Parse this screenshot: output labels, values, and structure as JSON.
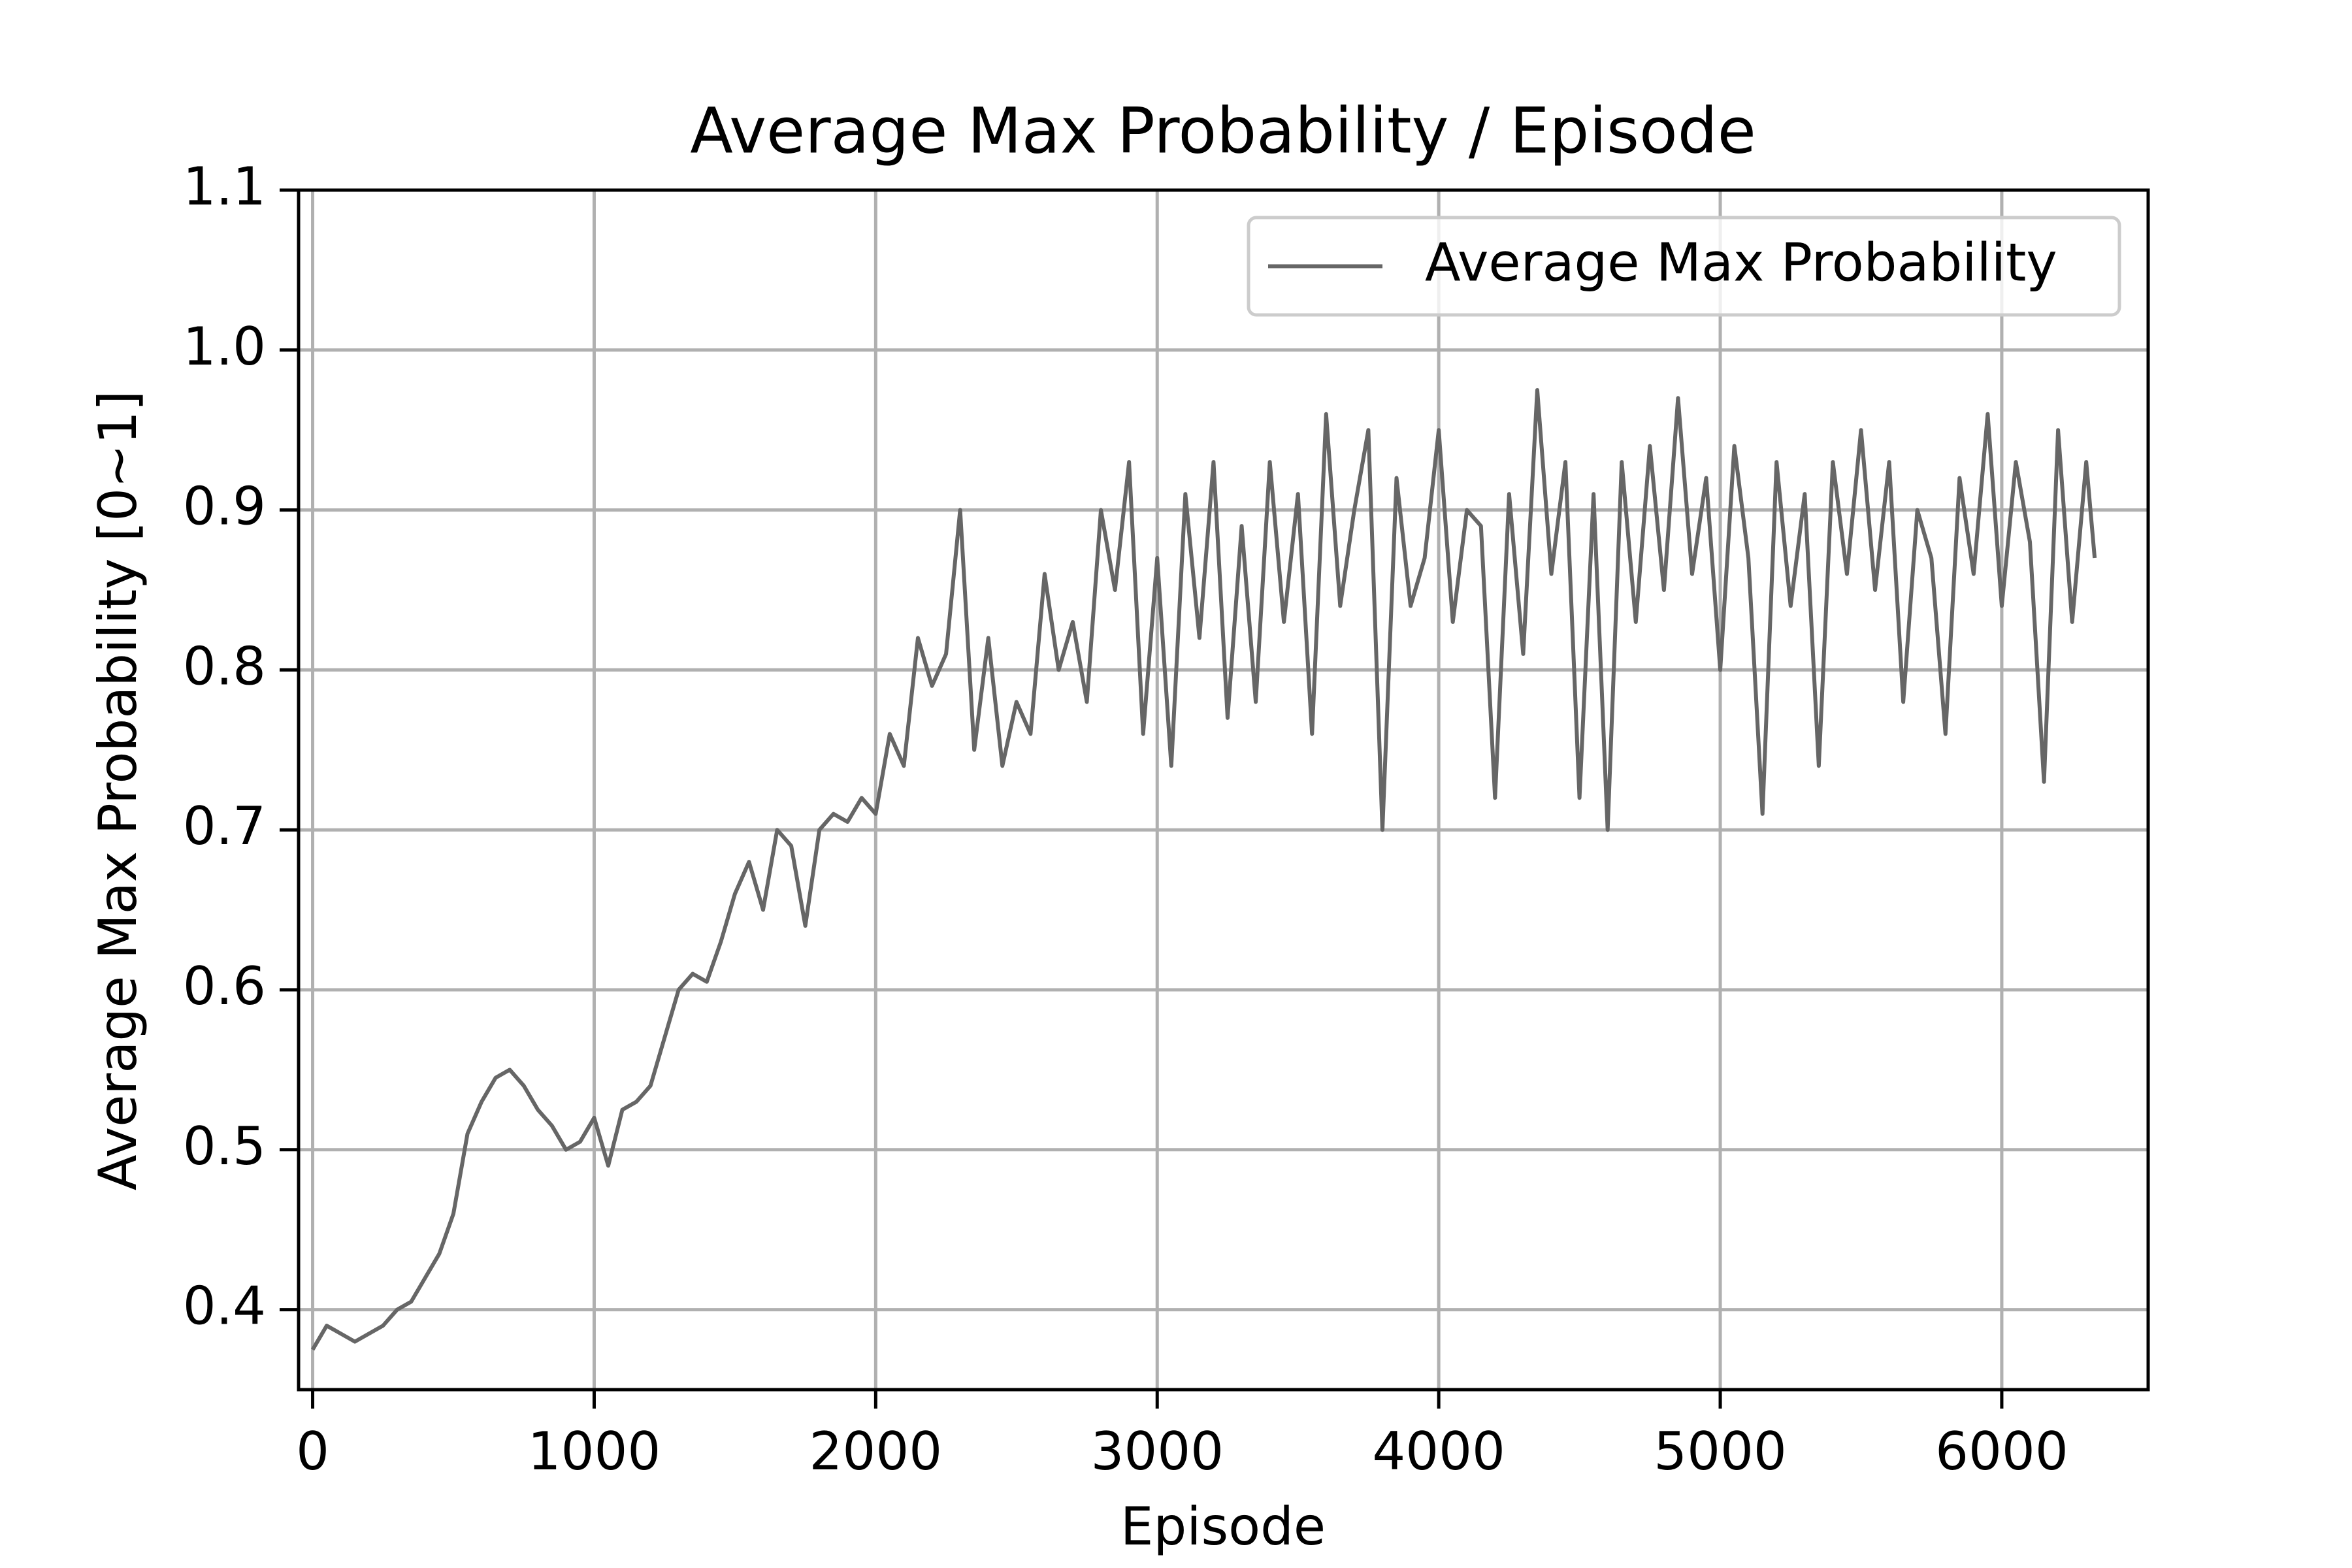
{
  "chart_data": {
    "type": "line",
    "title": "Average Max Probability / Episode",
    "x_label": "Episode",
    "y_label": "Average Max Probability [0~1]",
    "x": [
      0,
      50,
      100,
      150,
      200,
      250,
      300,
      350,
      400,
      450,
      500,
      550,
      600,
      650,
      700,
      750,
      800,
      850,
      900,
      950,
      1000,
      1050,
      1100,
      1150,
      1200,
      1250,
      1300,
      1350,
      1400,
      1450,
      1500,
      1550,
      1600,
      1650,
      1700,
      1750,
      1800,
      1850,
      1900,
      1950,
      2000,
      2050,
      2100,
      2150,
      2200,
      2250,
      2300,
      2350,
      2400,
      2450,
      2500,
      2550,
      2600,
      2650,
      2700,
      2750,
      2800,
      2850,
      2900,
      2950,
      3000,
      3050,
      3100,
      3150,
      3200,
      3250,
      3300,
      3350,
      3400,
      3450,
      3500,
      3550,
      3600,
      3650,
      3700,
      3750,
      3800,
      3850,
      3900,
      3950,
      4000,
      4050,
      4100,
      4150,
      4200,
      4250,
      4300,
      4350,
      4400,
      4450,
      4500,
      4550,
      4600,
      4650,
      4700,
      4750,
      4800,
      4850,
      4900,
      4950,
      5000,
      5050,
      5100,
      5150,
      5200,
      5250,
      5300,
      5350,
      5400,
      5450,
      5500,
      5550,
      5600,
      5650,
      5700,
      5750,
      5800,
      5850,
      5900,
      5950,
      6000,
      6050,
      6100,
      6150,
      6200,
      6250,
      6300,
      6330
    ],
    "series": [
      {
        "name": "Average Max Probability",
        "color": "#666666",
        "values": [
          0.375,
          0.39,
          0.385,
          0.38,
          0.385,
          0.39,
          0.4,
          0.405,
          0.42,
          0.435,
          0.46,
          0.51,
          0.53,
          0.545,
          0.55,
          0.54,
          0.525,
          0.515,
          0.5,
          0.505,
          0.52,
          0.49,
          0.525,
          0.53,
          0.54,
          0.57,
          0.6,
          0.61,
          0.605,
          0.63,
          0.66,
          0.68,
          0.65,
          0.7,
          0.69,
          0.64,
          0.7,
          0.71,
          0.705,
          0.72,
          0.71,
          0.76,
          0.74,
          0.82,
          0.79,
          0.81,
          0.9,
          0.75,
          0.82,
          0.74,
          0.78,
          0.76,
          0.86,
          0.8,
          0.83,
          0.78,
          0.9,
          0.85,
          0.93,
          0.76,
          0.87,
          0.74,
          0.91,
          0.82,
          0.93,
          0.77,
          0.89,
          0.78,
          0.93,
          0.83,
          0.91,
          0.76,
          0.96,
          0.84,
          0.9,
          0.95,
          0.7,
          0.92,
          0.84,
          0.87,
          0.95,
          0.83,
          0.9,
          0.89,
          0.72,
          0.91,
          0.81,
          0.975,
          0.86,
          0.93,
          0.72,
          0.91,
          0.7,
          0.93,
          0.83,
          0.94,
          0.85,
          0.97,
          0.86,
          0.92,
          0.8,
          0.94,
          0.87,
          0.71,
          0.93,
          0.84,
          0.91,
          0.74,
          0.93,
          0.86,
          0.95,
          0.85,
          0.93,
          0.78,
          0.9,
          0.87,
          0.76,
          0.92,
          0.86,
          0.96,
          0.84,
          0.93,
          0.88,
          0.73,
          0.95,
          0.83,
          0.93,
          0.87
        ]
      }
    ],
    "xlim": [
      -50,
      6520
    ],
    "xticks": [
      0,
      1000,
      2000,
      3000,
      4000,
      5000,
      6000
    ],
    "ylim": [
      0.35,
      1.1
    ],
    "yticks": [
      0.4,
      0.5,
      0.6,
      0.7,
      0.8,
      0.9,
      {
        "value": 1,
        "label": "1.0"
      },
      1.1
    ],
    "grid": true,
    "legend": "upper right"
  }
}
